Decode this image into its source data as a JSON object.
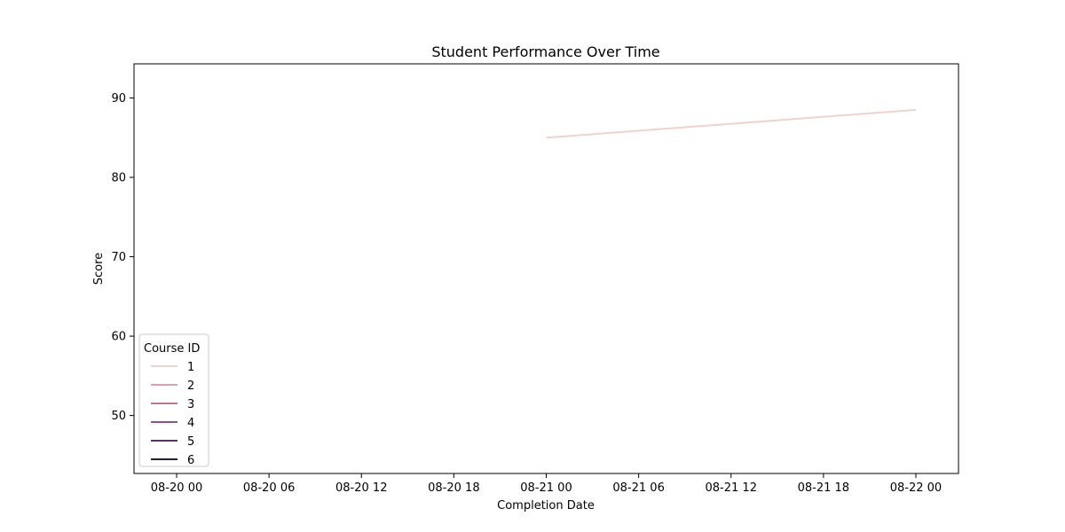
{
  "chart_data": {
    "type": "line",
    "title": "Student Performance Over Time",
    "xlabel": "Completion Date",
    "ylabel": "Score",
    "x_ticks": [
      "08-20 00",
      "08-20 06",
      "08-20 12",
      "08-20 18",
      "08-21 00",
      "08-21 06",
      "08-21 12",
      "08-21 18",
      "08-22 00"
    ],
    "y_ticks": [
      "50",
      "60",
      "70",
      "80",
      "90"
    ],
    "y_tick_values": [
      50,
      60,
      70,
      80,
      90
    ],
    "xlim": [
      "2023-08-19 21:14",
      "2023-08-22 02:46"
    ],
    "ylim": [
      42.7,
      94.3
    ],
    "legend": {
      "title": "Course ID",
      "placement": "lower-left",
      "entries": [
        {
          "name": "1",
          "color": "#f0d2cd"
        },
        {
          "name": "2",
          "color": "#dfa0a9"
        },
        {
          "name": "3",
          "color": "#c17494"
        },
        {
          "name": "4",
          "color": "#96508a"
        },
        {
          "name": "5",
          "color": "#5f2f69"
        },
        {
          "name": "6",
          "color": "#2b1a3d"
        }
      ]
    },
    "series": [
      {
        "name": "1",
        "color": "#f0d2cd",
        "points": [
          {
            "x": "2023-08-21 00:00",
            "y": 85.0
          },
          {
            "x": "2023-08-22 00:00",
            "y": 88.5
          }
        ]
      }
    ]
  }
}
